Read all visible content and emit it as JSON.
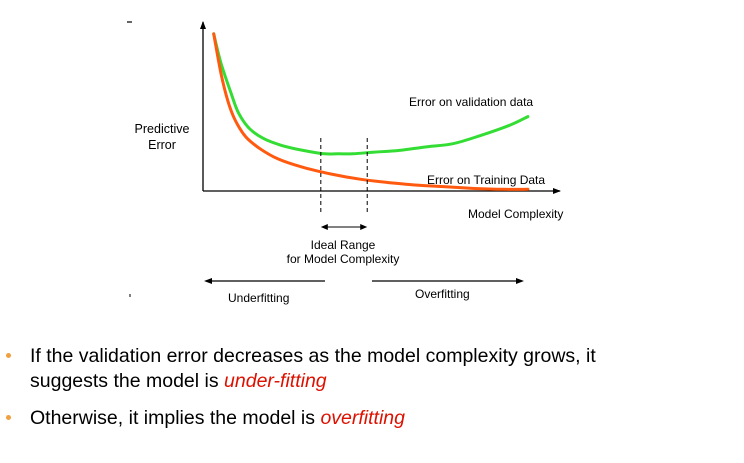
{
  "chart_data": {
    "type": "line",
    "title": "",
    "xlabel": "Model Complexity",
    "ylabel": "Predictive Error",
    "xlim": [
      0,
      100
    ],
    "ylim": [
      0,
      100
    ],
    "grid": false,
    "series": [
      {
        "name": "Error on validation data",
        "color": "#33dd33",
        "x": [
          3,
          5,
          8,
          10,
          13,
          17,
          22,
          28,
          34,
          38,
          42,
          48,
          55,
          62,
          70,
          78,
          86,
          91
        ],
        "y": [
          93,
          76,
          57,
          46,
          37,
          31,
          27,
          24,
          22,
          22,
          22,
          23,
          24,
          26,
          28,
          33,
          39,
          44
        ]
      },
      {
        "name": "Error on Training Data",
        "color": "#ff5a10",
        "x": [
          3,
          5,
          7,
          9,
          12,
          16,
          21,
          28,
          36,
          44,
          52,
          60,
          68,
          76,
          84,
          91
        ],
        "y": [
          93,
          70,
          53,
          42,
          32,
          25,
          19,
          14,
          10,
          7,
          5,
          3.5,
          2.5,
          1.5,
          1,
          1
        ]
      }
    ],
    "annotations": {
      "ideal_range": {
        "label_line1": "Ideal Range",
        "label_line2": "for Model Complexity",
        "x_start": 33,
        "x_end": 46
      },
      "underfitting": "Underfitting",
      "overfitting": "Overfitting"
    }
  },
  "bullets": [
    {
      "text_before": "If the validation error decreases as the model complexity grows, it",
      "line2_before": "suggests the model is ",
      "highlight": "under-fitting",
      "after": ""
    },
    {
      "text_before": "Otherwise, it implies the model is ",
      "highlight": "overfitting",
      "after": ""
    }
  ],
  "colors": {
    "bullet": "#f0a040",
    "highlight": "#dd1100",
    "validation": "#33dd33",
    "training": "#ff5a10"
  }
}
